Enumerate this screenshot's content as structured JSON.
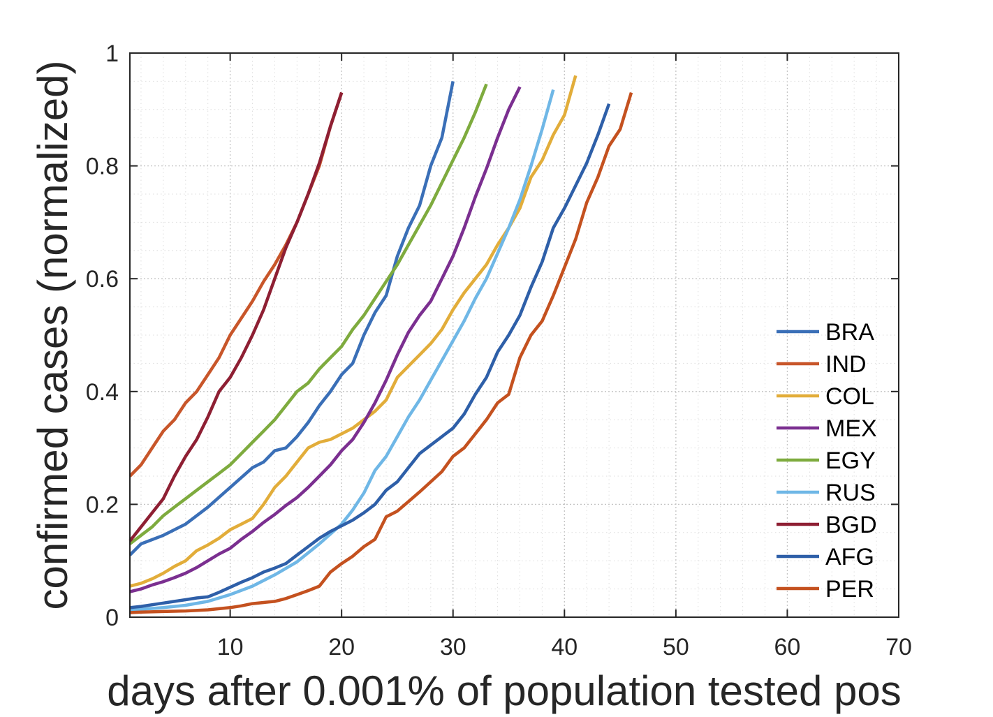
{
  "chart_data": {
    "type": "line",
    "title": "",
    "xlabel": "days after 0.001% of population tested pos",
    "ylabel": "confirmed cases (normalized)",
    "xlim": [
      1,
      70
    ],
    "ylim": [
      0,
      1
    ],
    "xticks": [
      10,
      20,
      30,
      40,
      50,
      60,
      70
    ],
    "xtick_labels": [
      "10",
      "20",
      "30",
      "40",
      "50",
      "60",
      "70"
    ],
    "yticks": [
      0,
      0.2,
      0.4,
      0.6,
      0.8,
      1
    ],
    "ytick_labels": [
      "0",
      "0.2",
      "0.4",
      "0.6",
      "0.8",
      "1"
    ],
    "grid": "major and minor, dotted",
    "legend_position": "bottom-right",
    "series": [
      {
        "name": "BRA",
        "color": "#3A6FB7",
        "x": [
          1,
          2,
          4,
          6,
          8,
          10,
          12,
          13,
          14,
          15,
          16,
          17,
          18,
          19,
          20,
          21,
          22,
          23,
          24,
          25,
          26,
          27,
          28,
          29,
          30
        ],
        "y": [
          0.11,
          0.13,
          0.145,
          0.165,
          0.195,
          0.23,
          0.265,
          0.275,
          0.295,
          0.3,
          0.32,
          0.345,
          0.375,
          0.4,
          0.43,
          0.45,
          0.5,
          0.54,
          0.57,
          0.64,
          0.69,
          0.73,
          0.8,
          0.85,
          0.95
        ]
      },
      {
        "name": "IND",
        "color": "#C8562A",
        "x": [
          1,
          2,
          3,
          4,
          5,
          6,
          7,
          8,
          9,
          10,
          11,
          12,
          13,
          14,
          15,
          16,
          17,
          18,
          19,
          20
        ],
        "y": [
          0.25,
          0.27,
          0.3,
          0.33,
          0.35,
          0.38,
          0.4,
          0.43,
          0.46,
          0.5,
          0.53,
          0.56,
          0.595,
          0.625,
          0.66,
          0.7,
          0.75,
          0.8,
          0.87,
          0.93
        ]
      },
      {
        "name": "COL",
        "color": "#E2AD3A",
        "x": [
          1,
          2,
          3,
          4,
          5,
          6,
          7,
          8,
          9,
          10,
          11,
          12,
          13,
          14,
          15,
          16,
          17,
          18,
          19,
          20,
          21,
          22,
          23,
          24,
          25,
          26,
          27,
          28,
          29,
          30,
          31,
          32,
          33,
          34,
          35,
          36,
          37,
          38,
          39,
          40,
          41
        ],
        "y": [
          0.055,
          0.06,
          0.068,
          0.078,
          0.09,
          0.1,
          0.118,
          0.128,
          0.14,
          0.155,
          0.165,
          0.175,
          0.2,
          0.23,
          0.25,
          0.275,
          0.3,
          0.31,
          0.315,
          0.325,
          0.335,
          0.35,
          0.365,
          0.385,
          0.425,
          0.445,
          0.465,
          0.485,
          0.51,
          0.545,
          0.575,
          0.6,
          0.625,
          0.66,
          0.69,
          0.725,
          0.78,
          0.81,
          0.855,
          0.89,
          0.96
        ]
      },
      {
        "name": "MEX",
        "color": "#7B2F90",
        "x": [
          1,
          2,
          3,
          4,
          5,
          6,
          7,
          8,
          9,
          10,
          11,
          12,
          13,
          14,
          15,
          16,
          17,
          18,
          19,
          20,
          21,
          22,
          23,
          24,
          25,
          26,
          27,
          28,
          29,
          30,
          31,
          32,
          33,
          34,
          35,
          36
        ],
        "y": [
          0.045,
          0.05,
          0.057,
          0.063,
          0.07,
          0.078,
          0.088,
          0.1,
          0.112,
          0.122,
          0.138,
          0.152,
          0.168,
          0.182,
          0.198,
          0.212,
          0.23,
          0.25,
          0.27,
          0.295,
          0.315,
          0.345,
          0.38,
          0.42,
          0.465,
          0.505,
          0.535,
          0.56,
          0.6,
          0.64,
          0.69,
          0.745,
          0.795,
          0.85,
          0.9,
          0.94
        ]
      },
      {
        "name": "EGY",
        "color": "#7EAB3E",
        "x": [
          1,
          2,
          3,
          4,
          5,
          6,
          7,
          8,
          9,
          10,
          11,
          12,
          13,
          14,
          15,
          16,
          17,
          18,
          19,
          20,
          21,
          22,
          23,
          24,
          25,
          26,
          27,
          28,
          29,
          30,
          31,
          32,
          33
        ],
        "y": [
          0.13,
          0.145,
          0.16,
          0.18,
          0.195,
          0.21,
          0.225,
          0.24,
          0.255,
          0.27,
          0.29,
          0.31,
          0.33,
          0.35,
          0.375,
          0.4,
          0.415,
          0.44,
          0.46,
          0.48,
          0.51,
          0.535,
          0.565,
          0.595,
          0.625,
          0.66,
          0.695,
          0.73,
          0.77,
          0.81,
          0.85,
          0.895,
          0.945
        ]
      },
      {
        "name": "RUS",
        "color": "#6FB7E6",
        "x": [
          1,
          2,
          4,
          6,
          8,
          10,
          12,
          14,
          16,
          18,
          20,
          21,
          22,
          23,
          24,
          25,
          26,
          27,
          28,
          29,
          30,
          31,
          32,
          33,
          34,
          35,
          36,
          37,
          38,
          39
        ],
        "y": [
          0.012,
          0.014,
          0.017,
          0.021,
          0.028,
          0.04,
          0.055,
          0.075,
          0.098,
          0.13,
          0.165,
          0.19,
          0.22,
          0.26,
          0.285,
          0.32,
          0.355,
          0.385,
          0.42,
          0.455,
          0.49,
          0.525,
          0.565,
          0.6,
          0.645,
          0.69,
          0.74,
          0.8,
          0.865,
          0.935
        ]
      },
      {
        "name": "BGD",
        "color": "#8E1F33",
        "x": [
          1,
          2,
          3,
          4,
          5,
          6,
          7,
          8,
          9,
          10,
          11,
          12,
          13,
          14,
          15,
          16,
          17,
          18,
          19,
          20
        ],
        "y": [
          0.135,
          0.16,
          0.185,
          0.21,
          0.25,
          0.285,
          0.315,
          0.355,
          0.4,
          0.425,
          0.46,
          0.5,
          0.545,
          0.6,
          0.655,
          0.7,
          0.75,
          0.805,
          0.87,
          0.93
        ]
      },
      {
        "name": "AFG",
        "color": "#2E5FA8",
        "x": [
          1,
          2,
          3,
          4,
          5,
          6,
          7,
          8,
          9,
          10,
          11,
          12,
          13,
          14,
          15,
          16,
          17,
          18,
          19,
          20,
          21,
          22,
          23,
          24,
          25,
          26,
          27,
          28,
          29,
          30,
          31,
          32,
          33,
          34,
          35,
          36,
          37,
          38,
          39,
          40,
          41,
          42,
          43,
          44
        ],
        "y": [
          0.017,
          0.019,
          0.022,
          0.025,
          0.028,
          0.031,
          0.034,
          0.036,
          0.044,
          0.053,
          0.062,
          0.07,
          0.08,
          0.087,
          0.095,
          0.11,
          0.125,
          0.14,
          0.152,
          0.162,
          0.172,
          0.185,
          0.2,
          0.225,
          0.24,
          0.265,
          0.29,
          0.305,
          0.32,
          0.335,
          0.36,
          0.395,
          0.425,
          0.47,
          0.5,
          0.535,
          0.585,
          0.63,
          0.69,
          0.725,
          0.765,
          0.805,
          0.855,
          0.91
        ]
      },
      {
        "name": "PER",
        "color": "#C4511F",
        "x": [
          1,
          2,
          4,
          6,
          8,
          10,
          11,
          12,
          13,
          14,
          15,
          16,
          17,
          18,
          19,
          20,
          21,
          22,
          23,
          24,
          25,
          26,
          27,
          28,
          29,
          30,
          31,
          32,
          33,
          34,
          35,
          36,
          37,
          38,
          39,
          40,
          41,
          42,
          43,
          44,
          45,
          46
        ],
        "y": [
          0.008,
          0.009,
          0.01,
          0.011,
          0.013,
          0.017,
          0.02,
          0.024,
          0.026,
          0.028,
          0.033,
          0.04,
          0.047,
          0.055,
          0.08,
          0.095,
          0.108,
          0.125,
          0.138,
          0.178,
          0.188,
          0.205,
          0.222,
          0.24,
          0.258,
          0.285,
          0.3,
          0.325,
          0.35,
          0.38,
          0.395,
          0.46,
          0.5,
          0.525,
          0.57,
          0.62,
          0.67,
          0.735,
          0.78,
          0.835,
          0.865,
          0.93
        ]
      }
    ]
  }
}
